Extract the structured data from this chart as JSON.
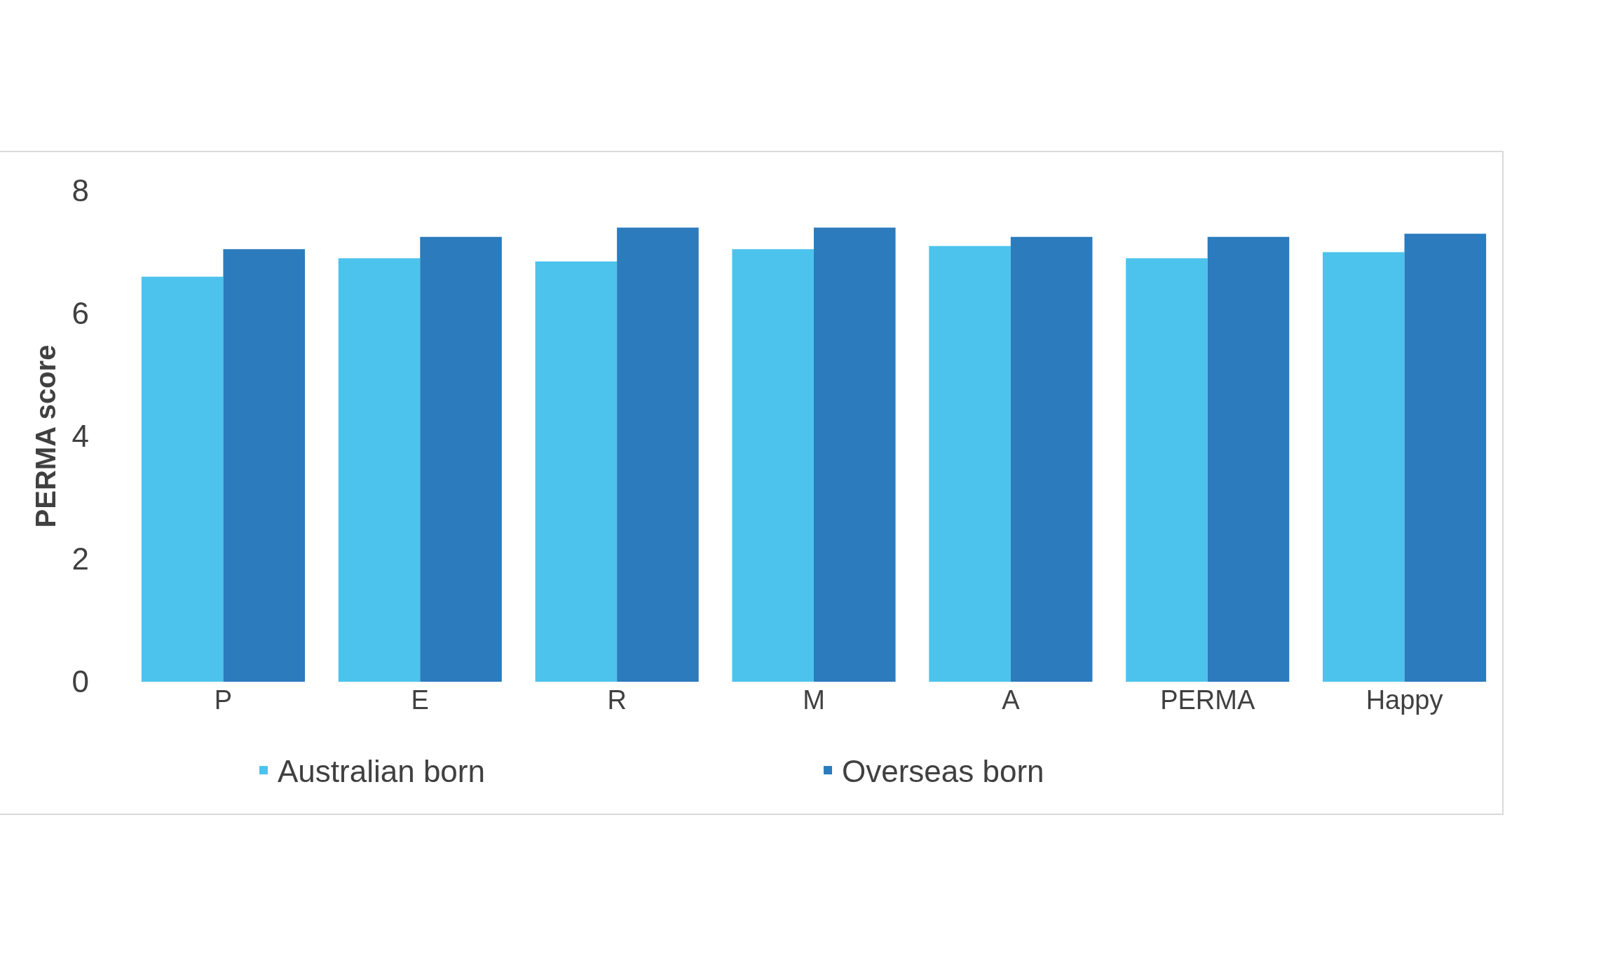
{
  "chart_data": {
    "type": "bar",
    "ylabel": "PERMA score",
    "categories": [
      "P",
      "E",
      "R",
      "M",
      "A",
      "PERMA",
      "Happy"
    ],
    "series": [
      {
        "name": "Australian born",
        "color": "#4cc3ec",
        "values": [
          6.6,
          6.9,
          6.85,
          7.05,
          7.1,
          6.9,
          7.0
        ]
      },
      {
        "name": "Overseas born",
        "color": "#2b7bbd",
        "values": [
          7.05,
          7.25,
          7.4,
          7.4,
          7.25,
          7.25,
          7.3
        ]
      }
    ],
    "ylim": [
      0,
      8
    ],
    "yticks": [
      0,
      2,
      4,
      6,
      8
    ],
    "grid": false,
    "legend": "bottom"
  }
}
